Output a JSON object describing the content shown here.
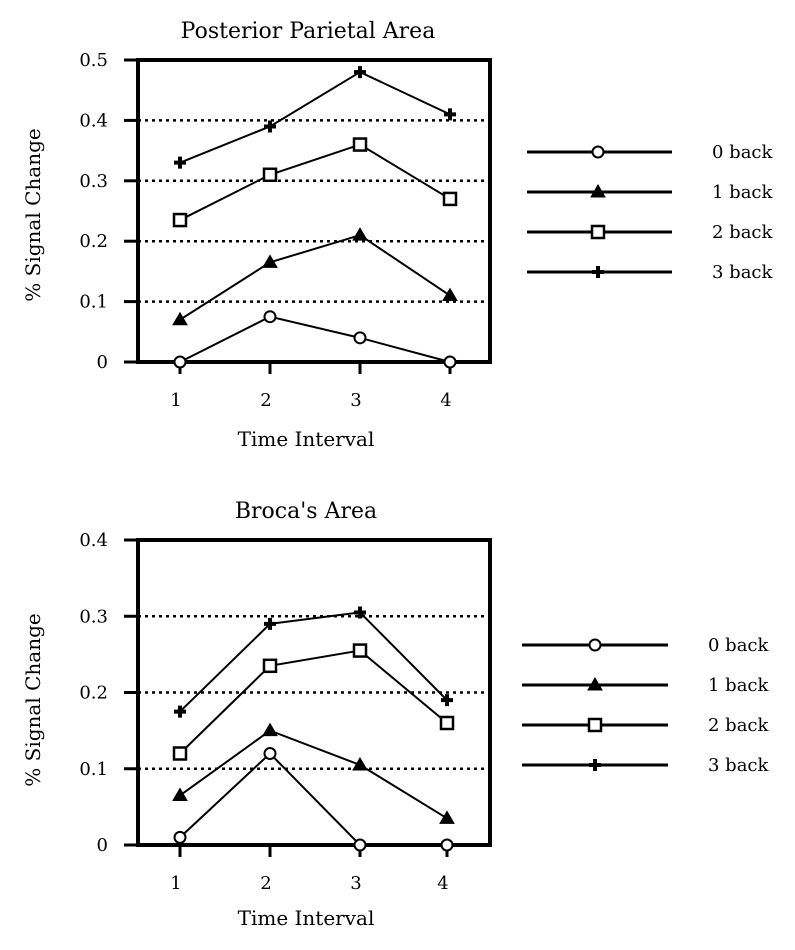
{
  "chart_data": [
    {
      "type": "line",
      "title": "Posterior Parietal Area",
      "xlabel": "Time Interval",
      "ylabel": "% Signal Change",
      "categories": [
        "1",
        "2",
        "3",
        "4"
      ],
      "yticks": [
        "0",
        "0.1",
        "0.2",
        "0.3",
        "0.4",
        "0.5"
      ],
      "ylim": [
        0,
        0.5
      ],
      "grid": "dotted horizontal at 0.1-0.4",
      "legend_position": "right",
      "series": [
        {
          "name": "0 back",
          "marker": "open-circle",
          "values": [
            0.0,
            0.075,
            0.04,
            0.0
          ]
        },
        {
          "name": "1 back",
          "marker": "filled-triangle",
          "values": [
            0.07,
            0.165,
            0.21,
            0.11
          ]
        },
        {
          "name": "2 back",
          "marker": "open-square",
          "values": [
            0.235,
            0.31,
            0.36,
            0.27
          ]
        },
        {
          "name": "3 back",
          "marker": "plus",
          "values": [
            0.33,
            0.39,
            0.48,
            0.41
          ]
        }
      ]
    },
    {
      "type": "line",
      "title": "Broca's Area",
      "xlabel": "Time Interval",
      "ylabel": "% Signal Change",
      "categories": [
        "1",
        "2",
        "3",
        "4"
      ],
      "yticks": [
        "0",
        "0.1",
        "0.2",
        "0.3",
        "0.4"
      ],
      "ylim": [
        0,
        0.4
      ],
      "grid": "dotted horizontal at 0.1-0.3",
      "legend_position": "right",
      "series": [
        {
          "name": "0 back",
          "marker": "open-circle",
          "values": [
            0.01,
            0.12,
            0.0,
            0.0
          ]
        },
        {
          "name": "1 back",
          "marker": "filled-triangle",
          "values": [
            0.065,
            0.15,
            0.105,
            0.035
          ]
        },
        {
          "name": "2 back",
          "marker": "open-square",
          "values": [
            0.12,
            0.235,
            0.255,
            0.16
          ]
        },
        {
          "name": "3 back",
          "marker": "plus",
          "values": [
            0.175,
            0.29,
            0.305,
            0.19
          ]
        }
      ]
    }
  ],
  "colors": {
    "ink": "#000000",
    "background": "#ffffff"
  }
}
